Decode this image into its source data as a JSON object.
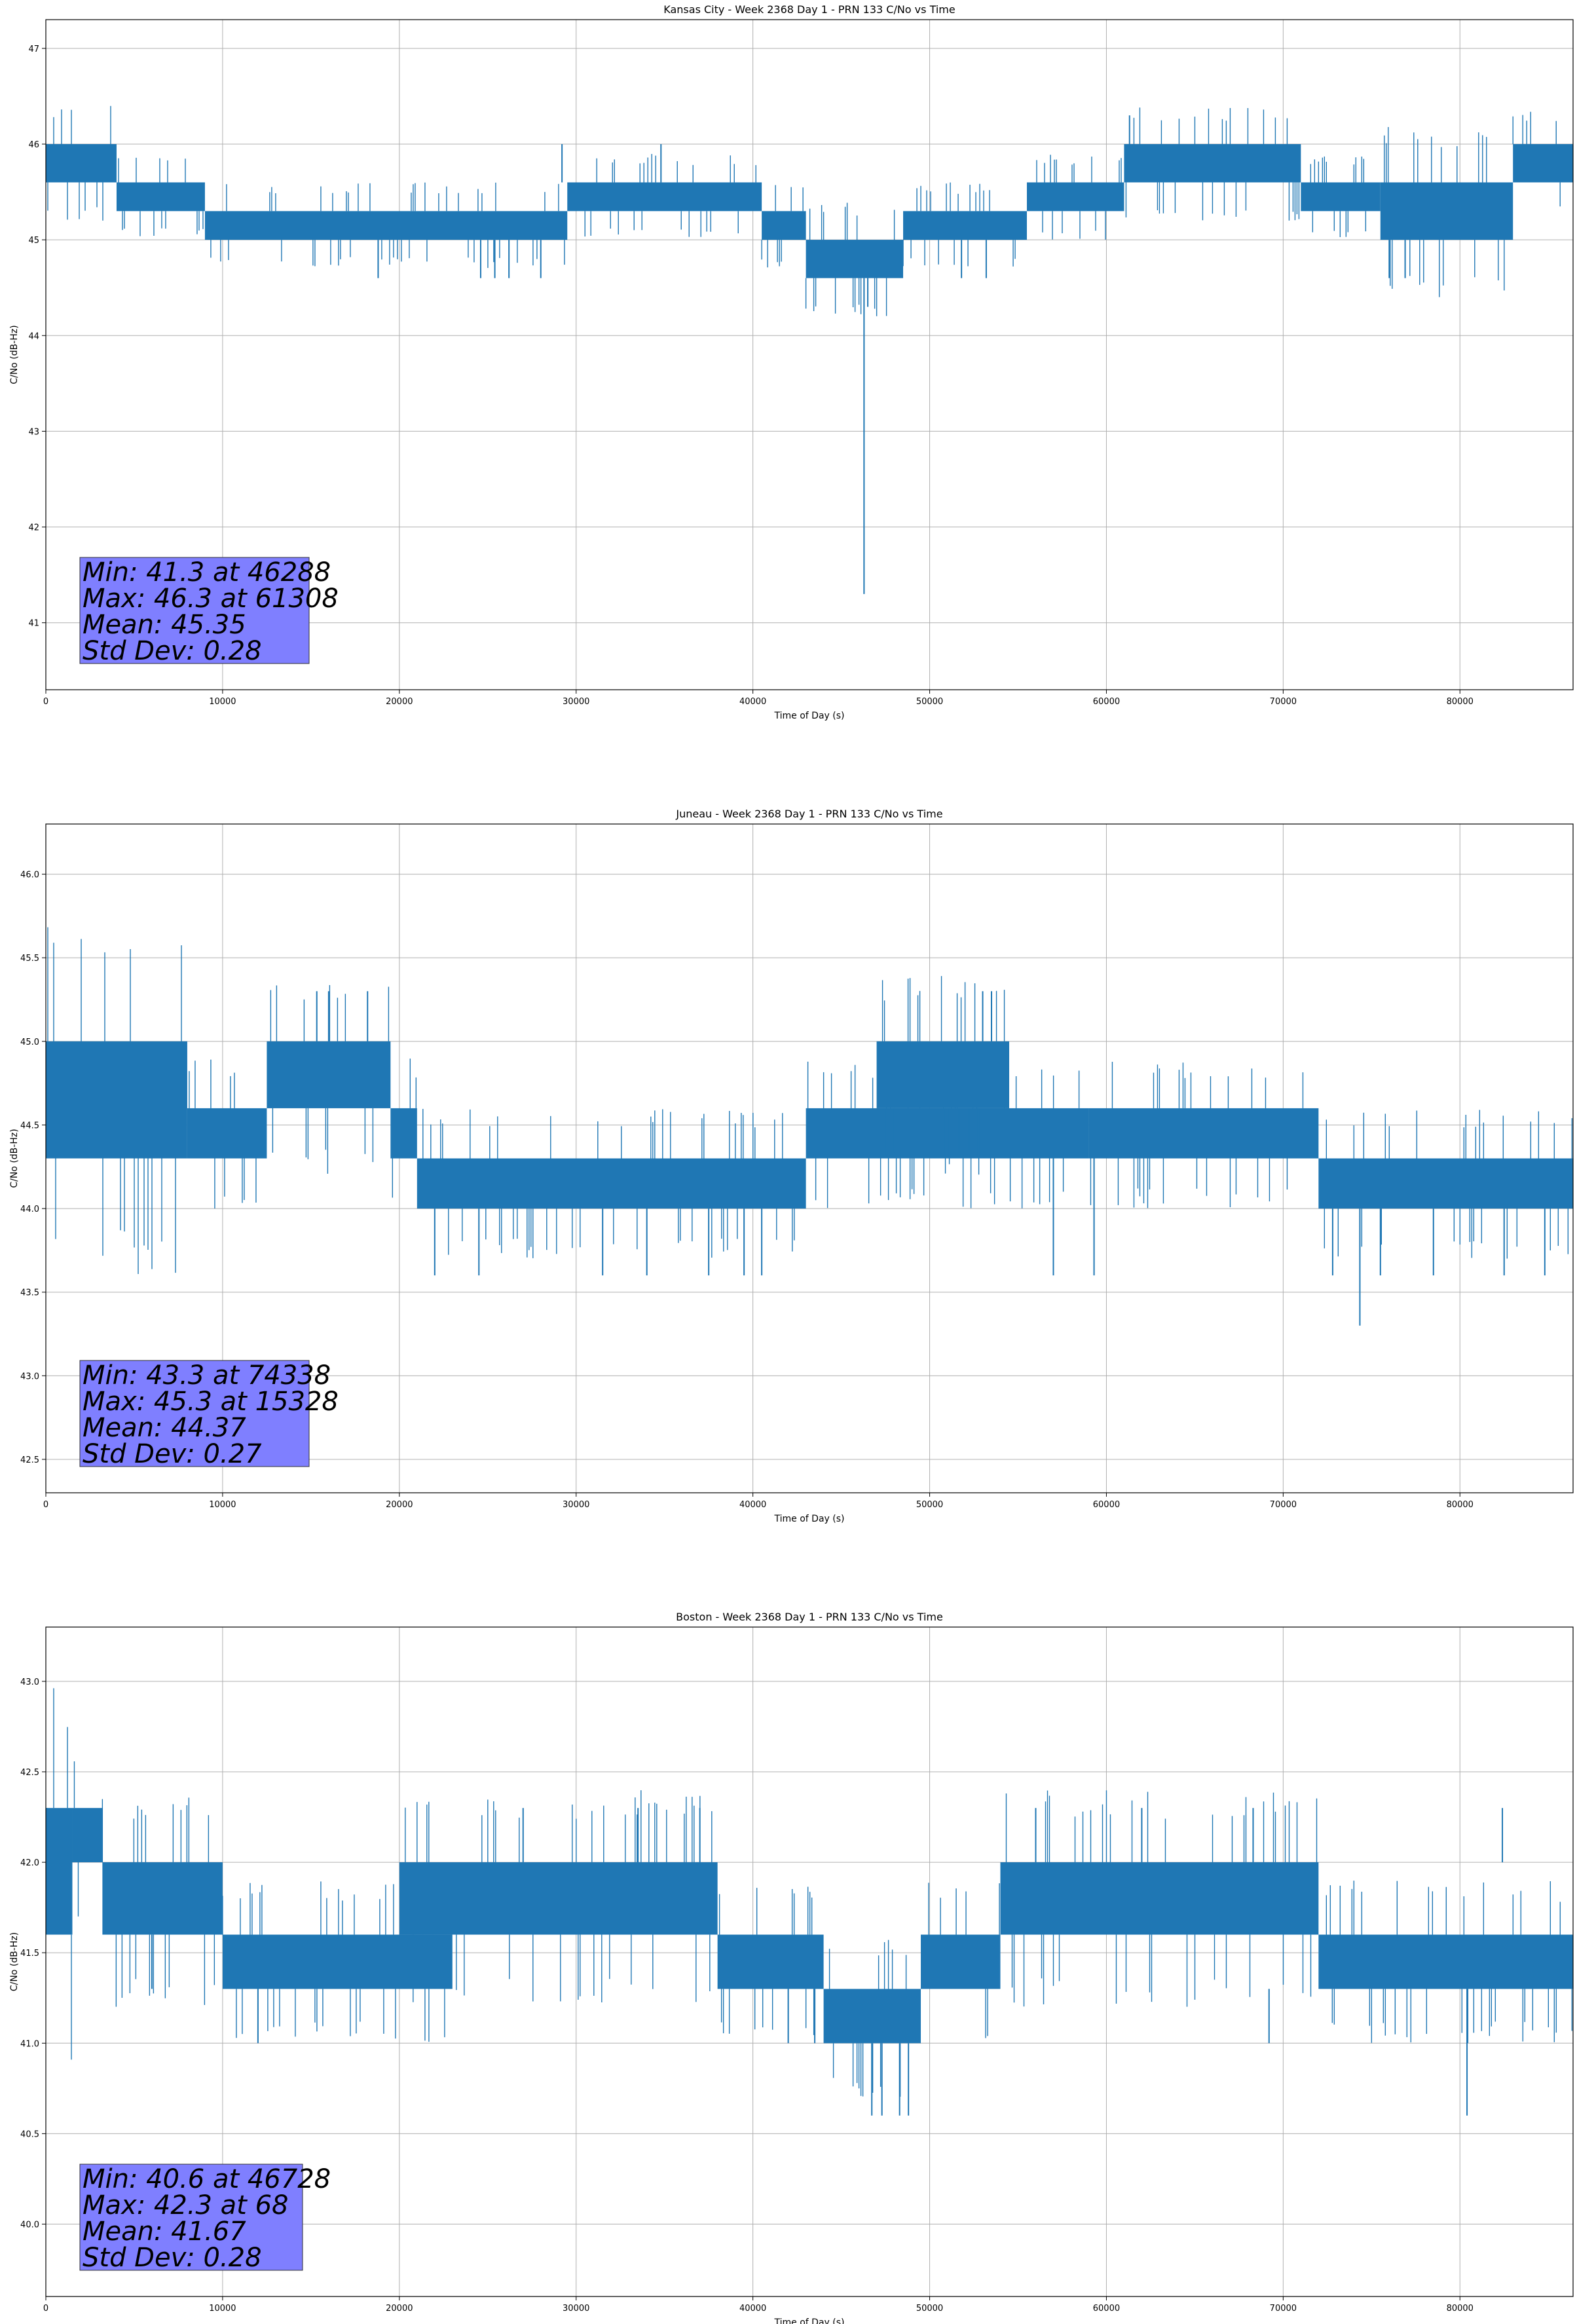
{
  "chart_data": [
    {
      "type": "line",
      "title": "Kansas City - Week 2368 Day 1 - PRN 133 C/No vs Time",
      "xlabel": "Time of Day (s)",
      "ylabel": "C/No (dB-Hz)",
      "xlim": [
        0,
        86400
      ],
      "ylim": [
        40.3,
        47.3
      ],
      "xticks": [
        0,
        10000,
        20000,
        30000,
        40000,
        50000,
        60000,
        70000,
        80000
      ],
      "yticks": [
        41,
        42,
        43,
        44,
        45,
        46,
        47
      ],
      "ytick_decimals": 0,
      "grid": true,
      "series_color": "#1f77b4",
      "stats_lines": [
        "Min: 41.3 at 46288",
        "Max: 46.3 at 61308",
        "Mean: 45.35",
        "Std Dev: 0.28"
      ],
      "stats_box_color": "#7f7fff",
      "series": [
        {
          "segments": [
            {
              "x0": 0,
              "x1": 4000,
              "lo": 45.6,
              "hi": 46.0
            },
            {
              "x0": 4000,
              "x1": 9000,
              "lo": 45.3,
              "hi": 45.6
            },
            {
              "x0": 9000,
              "x1": 29500,
              "lo": 45.0,
              "hi": 45.3
            },
            {
              "x0": 29500,
              "x1": 40500,
              "lo": 45.3,
              "hi": 45.6
            },
            {
              "x0": 40500,
              "x1": 43000,
              "lo": 45.0,
              "hi": 45.3
            },
            {
              "x0": 43000,
              "x1": 48500,
              "lo": 44.6,
              "hi": 45.0
            },
            {
              "x0": 48500,
              "x1": 55500,
              "lo": 45.0,
              "hi": 45.3
            },
            {
              "x0": 55500,
              "x1": 61000,
              "lo": 45.3,
              "hi": 45.6
            },
            {
              "x0": 61000,
              "x1": 71000,
              "lo": 45.6,
              "hi": 46.0
            },
            {
              "x0": 71000,
              "x1": 75500,
              "lo": 45.3,
              "hi": 45.6
            },
            {
              "x0": 75500,
              "x1": 83000,
              "lo": 45.0,
              "hi": 45.6
            },
            {
              "x0": 83000,
              "x1": 86400,
              "lo": 45.6,
              "hi": 46.0
            }
          ],
          "spikes": [
            {
              "x": 46288,
              "y0": 44.6,
              "y1": 41.3
            },
            {
              "x": 46500,
              "y0": 44.6,
              "y1": 44.3
            },
            {
              "x": 61308,
              "y0": 46.0,
              "y1": 46.3
            },
            {
              "x": 29200,
              "y0": 45.6,
              "y1": 46.0
            },
            {
              "x": 34800,
              "y0": 45.6,
              "y1": 46.0
            },
            {
              "x": 18800,
              "y0": 45.0,
              "y1": 44.6
            },
            {
              "x": 24600,
              "y0": 45.0,
              "y1": 44.6
            },
            {
              "x": 25400,
              "y0": 45.0,
              "y1": 44.6
            },
            {
              "x": 26200,
              "y0": 45.0,
              "y1": 44.6
            },
            {
              "x": 28000,
              "y0": 45.0,
              "y1": 44.6
            },
            {
              "x": 76000,
              "y0": 45.0,
              "y1": 44.6
            },
            {
              "x": 76900,
              "y0": 45.0,
              "y1": 44.6
            },
            {
              "x": 51800,
              "y0": 45.0,
              "y1": 44.6
            },
            {
              "x": 53200,
              "y0": 45.0,
              "y1": 44.6
            }
          ]
        }
      ]
    },
    {
      "type": "line",
      "title": "Juneau - Week 2368 Day 1 - PRN 133 C/No vs Time",
      "xlabel": "Time of Day (s)",
      "ylabel": "C/No (dB-Hz)",
      "xlim": [
        0,
        86400
      ],
      "ylim": [
        42.3,
        46.3
      ],
      "xticks": [
        0,
        10000,
        20000,
        30000,
        40000,
        50000,
        60000,
        70000,
        80000
      ],
      "yticks": [
        42.5,
        43.0,
        43.5,
        44.0,
        44.5,
        45.0,
        45.5,
        46.0
      ],
      "ytick_decimals": 1,
      "grid": true,
      "series_color": "#1f77b4",
      "stats_lines": [
        "Min: 43.3 at 74338",
        "Max: 45.3 at 15328",
        "Mean: 44.37",
        "Std Dev: 0.27"
      ],
      "stats_box_color": "#7f7fff",
      "series": [
        {
          "segments": [
            {
              "x0": 0,
              "x1": 8000,
              "lo": 44.3,
              "hi": 45.0
            },
            {
              "x0": 8000,
              "x1": 12500,
              "lo": 44.3,
              "hi": 44.6
            },
            {
              "x0": 12500,
              "x1": 19500,
              "lo": 44.6,
              "hi": 45.0
            },
            {
              "x0": 19500,
              "x1": 21000,
              "lo": 44.3,
              "hi": 44.6
            },
            {
              "x0": 21000,
              "x1": 43000,
              "lo": 44.0,
              "hi": 44.3
            },
            {
              "x0": 43000,
              "x1": 59000,
              "lo": 44.3,
              "hi": 44.6
            },
            {
              "x0": 47000,
              "x1": 54500,
              "lo": 44.6,
              "hi": 45.0
            },
            {
              "x0": 59000,
              "x1": 72000,
              "lo": 44.3,
              "hi": 44.6
            },
            {
              "x0": 72000,
              "x1": 86400,
              "lo": 44.0,
              "hi": 44.3
            }
          ],
          "spikes": [
            {
              "x": 74338,
              "y0": 44.0,
              "y1": 43.3
            },
            {
              "x": 15328,
              "y0": 45.0,
              "y1": 45.3
            },
            {
              "x": 16000,
              "y0": 45.0,
              "y1": 45.3
            },
            {
              "x": 18200,
              "y0": 45.0,
              "y1": 45.3
            },
            {
              "x": 53000,
              "y0": 45.0,
              "y1": 45.3
            },
            {
              "x": 53500,
              "y0": 45.0,
              "y1": 45.3
            },
            {
              "x": 22000,
              "y0": 44.0,
              "y1": 43.6
            },
            {
              "x": 24500,
              "y0": 44.0,
              "y1": 43.6
            },
            {
              "x": 31500,
              "y0": 44.0,
              "y1": 43.6
            },
            {
              "x": 34000,
              "y0": 44.0,
              "y1": 43.6
            },
            {
              "x": 37500,
              "y0": 44.0,
              "y1": 43.6
            },
            {
              "x": 39500,
              "y0": 44.0,
              "y1": 43.6
            },
            {
              "x": 40500,
              "y0": 44.0,
              "y1": 43.6
            },
            {
              "x": 57000,
              "y0": 44.3,
              "y1": 43.6
            },
            {
              "x": 59300,
              "y0": 44.3,
              "y1": 43.6
            },
            {
              "x": 72800,
              "y0": 44.0,
              "y1": 43.6
            },
            {
              "x": 75500,
              "y0": 44.0,
              "y1": 43.6
            },
            {
              "x": 78500,
              "y0": 44.0,
              "y1": 43.6
            },
            {
              "x": 82500,
              "y0": 44.0,
              "y1": 43.6
            },
            {
              "x": 84800,
              "y0": 44.0,
              "y1": 43.6
            }
          ]
        }
      ]
    },
    {
      "type": "line",
      "title": "Boston - Week 2368 Day 1 - PRN 133 C/No vs Time",
      "xlabel": "Time of Day (s)",
      "ylabel": "C/No (dB-Hz)",
      "xlim": [
        0,
        86400
      ],
      "ylim": [
        39.6,
        43.3
      ],
      "xticks": [
        0,
        10000,
        20000,
        30000,
        40000,
        50000,
        60000,
        70000,
        80000
      ],
      "yticks": [
        40.0,
        40.5,
        41.0,
        41.5,
        42.0,
        42.5,
        43.0
      ],
      "ytick_decimals": 1,
      "grid": true,
      "series_color": "#1f77b4",
      "stats_lines": [
        "Min: 40.6 at 46728",
        "Max: 42.3 at 68",
        "Mean: 41.67",
        "Std Dev: 0.28"
      ],
      "stats_box_color": "#7f7fff",
      "series": [
        {
          "segments": [
            {
              "x0": 0,
              "x1": 1500,
              "lo": 41.6,
              "hi": 42.3
            },
            {
              "x0": 1500,
              "x1": 3200,
              "lo": 42.0,
              "hi": 42.3
            },
            {
              "x0": 3200,
              "x1": 10000,
              "lo": 41.6,
              "hi": 42.0
            },
            {
              "x0": 10000,
              "x1": 23000,
              "lo": 41.3,
              "hi": 41.6
            },
            {
              "x0": 20000,
              "x1": 38000,
              "lo": 41.6,
              "hi": 42.0
            },
            {
              "x0": 38000,
              "x1": 44000,
              "lo": 41.3,
              "hi": 41.6
            },
            {
              "x0": 44000,
              "x1": 49500,
              "lo": 41.0,
              "hi": 41.3
            },
            {
              "x0": 49500,
              "x1": 54000,
              "lo": 41.3,
              "hi": 41.6
            },
            {
              "x0": 54000,
              "x1": 72000,
              "lo": 41.6,
              "hi": 42.0
            },
            {
              "x0": 72000,
              "x1": 86400,
              "lo": 41.3,
              "hi": 41.6
            }
          ],
          "spikes": [
            {
              "x": 68,
              "y0": 42.0,
              "y1": 42.3
            },
            {
              "x": 46728,
              "y0": 41.0,
              "y1": 40.6
            },
            {
              "x": 47300,
              "y0": 41.0,
              "y1": 40.6
            },
            {
              "x": 48300,
              "y0": 41.0,
              "y1": 40.6
            },
            {
              "x": 48800,
              "y0": 41.0,
              "y1": 40.6
            },
            {
              "x": 80400,
              "y0": 41.3,
              "y1": 40.6
            },
            {
              "x": 12000,
              "y0": 41.3,
              "y1": 41.0
            },
            {
              "x": 69200,
              "y0": 41.3,
              "y1": 41.0
            },
            {
              "x": 42000,
              "y0": 41.3,
              "y1": 41.0
            },
            {
              "x": 43500,
              "y0": 41.3,
              "y1": 41.0
            },
            {
              "x": 6000,
              "y0": 41.6,
              "y1": 41.3
            },
            {
              "x": 27000,
              "y0": 42.0,
              "y1": 42.3
            },
            {
              "x": 33500,
              "y0": 42.0,
              "y1": 42.3
            },
            {
              "x": 37000,
              "y0": 42.0,
              "y1": 42.3
            },
            {
              "x": 56000,
              "y0": 42.0,
              "y1": 42.3
            },
            {
              "x": 62000,
              "y0": 42.0,
              "y1": 42.3
            },
            {
              "x": 68300,
              "y0": 42.0,
              "y1": 42.3
            },
            {
              "x": 82400,
              "y0": 42.0,
              "y1": 42.3
            }
          ]
        }
      ]
    }
  ]
}
